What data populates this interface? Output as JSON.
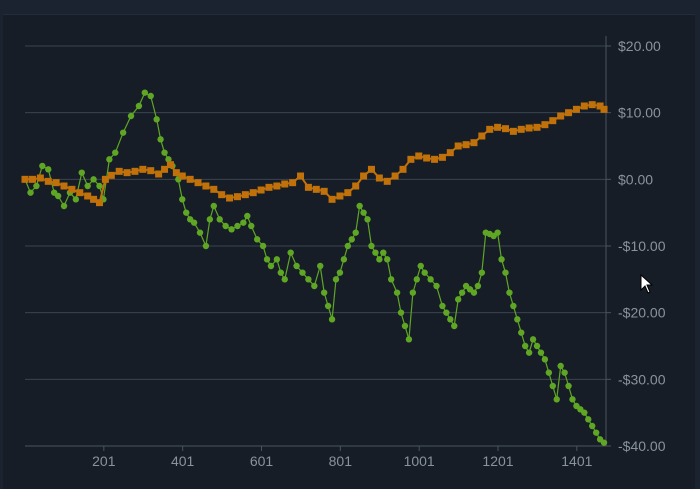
{
  "chart_data": {
    "type": "line",
    "x_ticks": [
      201,
      401,
      601,
      801,
      1001,
      1201,
      1401
    ],
    "xlim": [
      1,
      1475
    ],
    "y_ticks": [
      20,
      10,
      0,
      -10,
      -20,
      -30,
      -40
    ],
    "y_tick_labels": [
      "$20.00",
      "$10.00",
      "$0.00",
      "-$10.00",
      "-$20.00",
      "-$30.00",
      "-$40.00"
    ],
    "ylim": [
      -40,
      20
    ],
    "grid": true,
    "y_axis_side": "right",
    "series": [
      {
        "color": "#5fa625",
        "marker": "circle",
        "x": [
          1,
          15,
          30,
          45,
          60,
          75,
          85,
          100,
          115,
          130,
          145,
          160,
          175,
          190,
          200,
          215,
          230,
          250,
          270,
          290,
          305,
          320,
          335,
          345,
          355,
          365,
          375,
          390,
          400,
          410,
          420,
          430,
          445,
          460,
          470,
          480,
          495,
          510,
          525,
          540,
          555,
          565,
          575,
          590,
          605,
          615,
          625,
          640,
          650,
          660,
          675,
          690,
          705,
          720,
          735,
          750,
          760,
          770,
          780,
          790,
          800,
          810,
          820,
          830,
          840,
          850,
          860,
          870,
          880,
          890,
          900,
          910,
          920,
          930,
          945,
          955,
          965,
          975,
          985,
          995,
          1005,
          1015,
          1030,
          1045,
          1060,
          1070,
          1080,
          1090,
          1100,
          1110,
          1120,
          1130,
          1140,
          1150,
          1160,
          1170,
          1180,
          1190,
          1200,
          1210,
          1220,
          1230,
          1240,
          1250,
          1260,
          1270,
          1280,
          1290,
          1300,
          1310,
          1320,
          1330,
          1340,
          1350,
          1360,
          1370,
          1380,
          1390,
          1400,
          1410,
          1420,
          1430,
          1440,
          1450,
          1460,
          1470
        ],
        "y": [
          0,
          -2,
          -1,
          2,
          1.5,
          -2,
          -2.5,
          -4,
          -2,
          -3,
          1,
          -1,
          0,
          -1,
          -3,
          3,
          4,
          7,
          9.5,
          11,
          13,
          12.5,
          9,
          6,
          4,
          3,
          2,
          0,
          -3,
          -5,
          -6,
          -6.5,
          -8,
          -10,
          -6,
          -4,
          -6,
          -7,
          -7.5,
          -7,
          -6.5,
          -5.5,
          -7,
          -9,
          -10,
          -12,
          -13,
          -12,
          -14,
          -15,
          -11,
          -13,
          -14,
          -15,
          -16,
          -13,
          -17,
          -19,
          -21,
          -15,
          -14,
          -12,
          -10,
          -9,
          -8,
          -4,
          -5,
          -6,
          -10,
          -11,
          -12,
          -11,
          -12,
          -15,
          -17,
          -20,
          -22,
          -24,
          -17,
          -15,
          -13,
          -14,
          -15,
          -16,
          -19,
          -20,
          -21,
          -22,
          -18,
          -17,
          -16,
          -16.5,
          -17,
          -16,
          -14,
          -8,
          -8.2,
          -8.5,
          -8,
          -12,
          -14,
          -17,
          -19,
          -21,
          -23,
          -25,
          -26,
          -24,
          -25,
          -26,
          -27,
          -29,
          -31,
          -33,
          -28,
          -29,
          -31,
          -33,
          -34,
          -34.5,
          -35,
          -36,
          -37,
          -38,
          -39,
          -39.5
        ]
      },
      {
        "color": "#c0710a",
        "marker": "square",
        "x": [
          1,
          20,
          40,
          60,
          80,
          100,
          120,
          140,
          160,
          175,
          190,
          205,
          220,
          240,
          260,
          280,
          300,
          320,
          340,
          355,
          370,
          385,
          400,
          420,
          440,
          460,
          480,
          500,
          520,
          540,
          560,
          580,
          600,
          620,
          640,
          660,
          680,
          700,
          720,
          740,
          760,
          780,
          800,
          820,
          840,
          860,
          880,
          900,
          920,
          940,
          960,
          980,
          1000,
          1020,
          1040,
          1060,
          1080,
          1100,
          1120,
          1140,
          1160,
          1180,
          1200,
          1220,
          1240,
          1260,
          1280,
          1300,
          1320,
          1340,
          1360,
          1380,
          1400,
          1420,
          1440,
          1460,
          1470
        ],
        "y": [
          0,
          0,
          0.2,
          -0.3,
          -0.5,
          -1,
          -1.5,
          -2,
          -2.5,
          -3,
          -3.5,
          0,
          0.6,
          1.2,
          1,
          1.2,
          1.5,
          1.3,
          0.8,
          1.5,
          2.2,
          1,
          0.5,
          0,
          -0.5,
          -1,
          -1.5,
          -2.3,
          -2.8,
          -2.6,
          -2.3,
          -2,
          -1.6,
          -1.2,
          -1,
          -0.7,
          -0.5,
          0.5,
          -1.2,
          -1.5,
          -1.8,
          -3,
          -2.5,
          -2,
          -1,
          0.5,
          1.5,
          0.2,
          -0.3,
          0.5,
          1.5,
          3,
          3.5,
          3.2,
          3,
          3.3,
          4,
          5,
          5.2,
          5.5,
          6.5,
          7.5,
          7.8,
          7.6,
          7.2,
          7.5,
          7.7,
          7.8,
          8.2,
          8.8,
          9.5,
          10,
          10.5,
          11,
          11.2,
          11,
          10.5
        ]
      }
    ]
  }
}
